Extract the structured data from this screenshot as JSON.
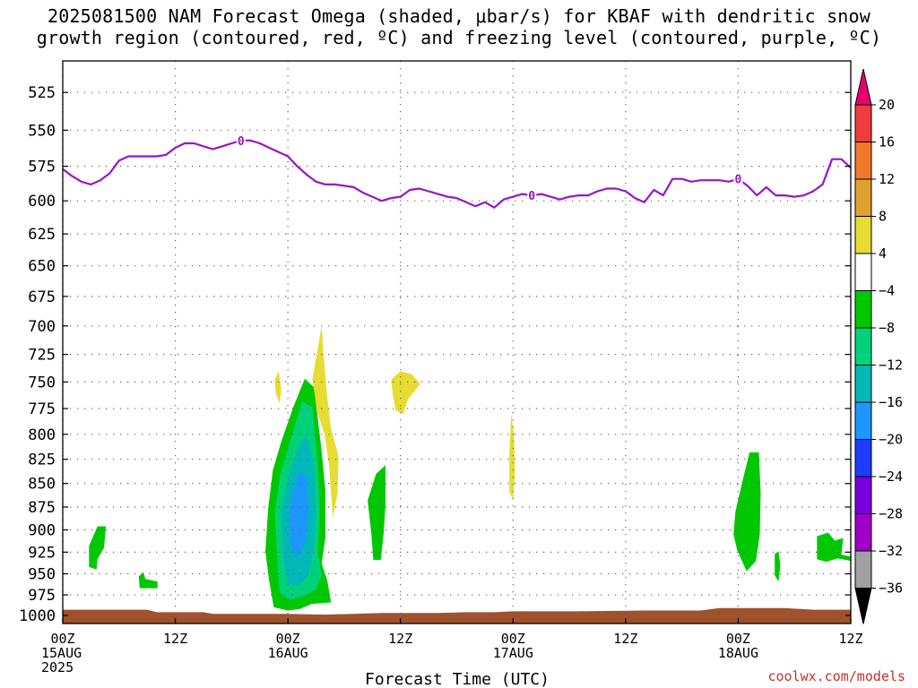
{
  "title_line1": "2025081500 NAM Forecast Omega (shaded, μbar/s) for KBAF with dendritic snow",
  "title_line2": "growth region (contoured, red, ºC) and freezing level (contoured, purple, ºC)",
  "credit": "coolwx.com/models",
  "chart_data": {
    "type": "heatmap",
    "xlabel": "Forecast Time (UTC)",
    "ylabel": "",
    "x_ticks": [
      {
        "hour": 0,
        "lines": [
          "00Z",
          "15AUG",
          "2025"
        ]
      },
      {
        "hour": 12,
        "lines": [
          "12Z"
        ]
      },
      {
        "hour": 24,
        "lines": [
          "00Z",
          "16AUG"
        ]
      },
      {
        "hour": 36,
        "lines": [
          "12Z"
        ]
      },
      {
        "hour": 48,
        "lines": [
          "00Z",
          "17AUG"
        ]
      },
      {
        "hour": 60,
        "lines": [
          "12Z"
        ]
      },
      {
        "hour": 72,
        "lines": [
          "00Z",
          "18AUG"
        ]
      },
      {
        "hour": 84,
        "lines": [
          "12Z"
        ]
      }
    ],
    "xlim": [
      0,
      84
    ],
    "y_ticks": [
      525,
      550,
      575,
      600,
      625,
      650,
      675,
      700,
      725,
      750,
      775,
      800,
      825,
      850,
      875,
      900,
      925,
      950,
      975,
      1000
    ],
    "ylim": [
      505,
      1010
    ],
    "y_scale": "log-pressure (hPa, increasing downward)",
    "grid": true,
    "colorbar": {
      "levels": [
        20,
        16,
        12,
        8,
        4,
        -4,
        -8,
        -12,
        -16,
        -20,
        -24,
        -28,
        -32,
        -36
      ],
      "colors": [
        "#e8006e",
        "#f03c3c",
        "#f07828",
        "#e0a030",
        "#e6dc32",
        "#ffffff",
        "#00c800",
        "#00d27a",
        "#00b8b8",
        "#1e96ff",
        "#1e3cff",
        "#7800dc",
        "#a000c8",
        "#a0a0a0",
        "#000000"
      ]
    },
    "freezing_level": {
      "color": "#9a14c8",
      "label": "0",
      "label_hours": [
        19,
        50,
        72
      ],
      "points": [
        [
          0,
          577
        ],
        [
          1,
          582
        ],
        [
          2,
          586
        ],
        [
          3,
          588
        ],
        [
          4,
          585
        ],
        [
          5,
          580
        ],
        [
          6,
          571
        ],
        [
          7,
          568
        ],
        [
          8,
          568
        ],
        [
          9,
          568
        ],
        [
          10,
          568
        ],
        [
          11,
          567
        ],
        [
          12,
          562
        ],
        [
          13,
          559
        ],
        [
          14,
          559
        ],
        [
          15,
          561
        ],
        [
          16,
          563
        ],
        [
          17,
          561
        ],
        [
          18,
          559
        ],
        [
          19,
          557
        ],
        [
          20,
          557
        ],
        [
          21,
          559
        ],
        [
          22,
          562
        ],
        [
          23,
          565
        ],
        [
          24,
          568
        ],
        [
          25,
          575
        ],
        [
          26,
          581
        ],
        [
          27,
          586
        ],
        [
          28,
          588
        ],
        [
          29,
          588
        ],
        [
          30,
          589
        ],
        [
          31,
          590
        ],
        [
          32,
          594
        ],
        [
          33,
          597
        ],
        [
          34,
          600
        ],
        [
          35,
          598
        ],
        [
          36,
          597
        ],
        [
          37,
          592
        ],
        [
          38,
          591
        ],
        [
          39,
          593
        ],
        [
          40,
          595
        ],
        [
          41,
          597
        ],
        [
          42,
          598
        ],
        [
          43,
          601
        ],
        [
          44,
          604
        ],
        [
          45,
          601
        ],
        [
          46,
          605
        ],
        [
          47,
          599
        ],
        [
          48,
          597
        ],
        [
          49,
          595
        ],
        [
          50,
          596
        ],
        [
          51,
          595
        ],
        [
          52,
          597
        ],
        [
          53,
          599
        ],
        [
          54,
          597
        ],
        [
          55,
          596
        ],
        [
          56,
          596
        ],
        [
          57,
          593
        ],
        [
          58,
          591
        ],
        [
          59,
          591
        ],
        [
          60,
          593
        ],
        [
          61,
          598
        ],
        [
          62,
          601
        ],
        [
          63,
          592
        ],
        [
          64,
          596
        ],
        [
          65,
          584
        ],
        [
          66,
          584
        ],
        [
          67,
          586
        ],
        [
          68,
          585
        ],
        [
          69,
          585
        ],
        [
          70,
          585
        ],
        [
          71,
          586
        ],
        [
          72,
          584
        ],
        [
          73,
          589
        ],
        [
          74,
          596
        ],
        [
          75,
          590
        ],
        [
          76,
          596
        ],
        [
          77,
          596
        ],
        [
          78,
          597
        ],
        [
          79,
          596
        ],
        [
          80,
          593
        ],
        [
          81,
          588
        ],
        [
          82,
          570
        ],
        [
          83,
          570
        ],
        [
          84,
          576
        ]
      ]
    },
    "surface_ground": {
      "color": "#a0522d",
      "points": [
        [
          0,
          993
        ],
        [
          5,
          993
        ],
        [
          9,
          993
        ],
        [
          10,
          996
        ],
        [
          15,
          996
        ],
        [
          16,
          998
        ],
        [
          24,
          998
        ],
        [
          28,
          999
        ],
        [
          34,
          997
        ],
        [
          40,
          997
        ],
        [
          43,
          996
        ],
        [
          46,
          996
        ],
        [
          48,
          995
        ],
        [
          55,
          995
        ],
        [
          62,
          994
        ],
        [
          65,
          994
        ],
        [
          68,
          994
        ],
        [
          70,
          991
        ],
        [
          77,
          991
        ],
        [
          80,
          993
        ],
        [
          84,
          993
        ]
      ]
    },
    "omega_regions": [
      {
        "band": "-8",
        "points": [
          [
            21.9,
            876
          ],
          [
            22.4,
            836
          ],
          [
            23.3,
            807
          ],
          [
            24.6,
            773
          ],
          [
            25.8,
            747
          ],
          [
            26.8,
            755
          ],
          [
            27.6,
            817
          ],
          [
            28.0,
            858
          ],
          [
            28.0,
            908
          ],
          [
            27.6,
            938
          ],
          [
            28.2,
            958
          ],
          [
            28.6,
            984
          ],
          [
            26.5,
            986
          ],
          [
            25.3,
            992
          ],
          [
            24.0,
            994
          ],
          [
            22.5,
            990
          ],
          [
            22.0,
            958
          ],
          [
            21.6,
            924
          ]
        ]
      },
      {
        "band": "-12",
        "points": [
          [
            22.6,
            880
          ],
          [
            23.2,
            840
          ],
          [
            24.3,
            805
          ],
          [
            25.5,
            768
          ],
          [
            26.6,
            774
          ],
          [
            27.2,
            830
          ],
          [
            27.4,
            880
          ],
          [
            27.2,
            925
          ],
          [
            27.6,
            952
          ],
          [
            27.0,
            968
          ],
          [
            26.0,
            975
          ],
          [
            24.2,
            981
          ],
          [
            23.1,
            972
          ],
          [
            22.9,
            940
          ]
        ]
      },
      {
        "band": "-16",
        "points": [
          [
            23.3,
            880
          ],
          [
            23.9,
            848
          ],
          [
            25.0,
            815
          ],
          [
            26.0,
            800
          ],
          [
            26.8,
            832
          ],
          [
            27.0,
            880
          ],
          [
            26.7,
            925
          ],
          [
            26.2,
            952
          ],
          [
            25.2,
            964
          ],
          [
            24.0,
            962
          ],
          [
            23.5,
            935
          ]
        ]
      },
      {
        "band": "-20",
        "points": [
          [
            24.1,
            882
          ],
          [
            24.6,
            855
          ],
          [
            25.3,
            838
          ],
          [
            26.0,
            845
          ],
          [
            26.2,
            880
          ],
          [
            25.9,
            912
          ],
          [
            25.1,
            932
          ],
          [
            24.3,
            918
          ]
        ]
      },
      {
        "band": "-8",
        "points": [
          [
            2.8,
            918
          ],
          [
            3.7,
            896
          ],
          [
            4.6,
            896
          ],
          [
            4.4,
            920
          ],
          [
            3.7,
            933
          ],
          [
            3.6,
            945
          ],
          [
            2.8,
            942
          ]
        ]
      },
      {
        "band": "-8",
        "points": [
          [
            8.1,
            953
          ],
          [
            8.6,
            948
          ],
          [
            8.8,
            956
          ],
          [
            10.1,
            959
          ],
          [
            10.1,
            967
          ],
          [
            8.2,
            967
          ]
        ]
      },
      {
        "band": "-8",
        "points": [
          [
            32.5,
            868
          ],
          [
            33.4,
            840
          ],
          [
            34.4,
            831
          ],
          [
            34.4,
            872
          ],
          [
            34.2,
            905
          ],
          [
            33.9,
            934
          ],
          [
            33.1,
            934
          ],
          [
            32.9,
            905
          ]
        ]
      },
      {
        "band": "-8",
        "points": [
          [
            71.7,
            880
          ],
          [
            72.4,
            850
          ],
          [
            73.2,
            818
          ],
          [
            74.2,
            818
          ],
          [
            74.4,
            860
          ],
          [
            74.3,
            905
          ],
          [
            73.9,
            935
          ],
          [
            72.9,
            947
          ],
          [
            71.9,
            923
          ],
          [
            71.5,
            905
          ]
        ]
      },
      {
        "band": "-8",
        "points": [
          [
            75.9,
            927
          ],
          [
            76.3,
            924
          ],
          [
            76.5,
            940
          ],
          [
            76.3,
            959
          ],
          [
            75.9,
            952
          ]
        ]
      },
      {
        "band": "-8",
        "points": [
          [
            80.4,
            907
          ],
          [
            81.6,
            903
          ],
          [
            82.3,
            912
          ],
          [
            83.2,
            909
          ],
          [
            83.0,
            928
          ],
          [
            84.0,
            930
          ],
          [
            84.0,
            935
          ],
          [
            82.6,
            932
          ],
          [
            81.4,
            936
          ],
          [
            80.4,
            933
          ]
        ]
      },
      {
        "band": "4",
        "points": [
          [
            26.6,
            748
          ],
          [
            27.6,
            700
          ],
          [
            27.8,
            725
          ],
          [
            28.2,
            765
          ],
          [
            28.6,
            795
          ],
          [
            29.0,
            808
          ],
          [
            29.4,
            822
          ],
          [
            29.3,
            860
          ],
          [
            28.8,
            887
          ],
          [
            28.6,
            860
          ],
          [
            28.4,
            832
          ],
          [
            27.9,
            800
          ],
          [
            27.2,
            780
          ]
        ]
      },
      {
        "band": "4",
        "points": [
          [
            22.6,
            748
          ],
          [
            23.0,
            740
          ],
          [
            23.3,
            757
          ],
          [
            23.1,
            770
          ],
          [
            22.7,
            760
          ]
        ]
      },
      {
        "band": "4",
        "points": [
          [
            35.0,
            748
          ],
          [
            36.0,
            740
          ],
          [
            37.2,
            743
          ],
          [
            38.1,
            752
          ],
          [
            36.8,
            766
          ],
          [
            36.3,
            780
          ],
          [
            35.5,
            777
          ],
          [
            35.2,
            763
          ]
        ]
      },
      {
        "band": "4",
        "points": [
          [
            47.6,
            820
          ],
          [
            47.8,
            780
          ],
          [
            48.1,
            800
          ],
          [
            48.2,
            840
          ],
          [
            48.0,
            868
          ],
          [
            47.6,
            858
          ]
        ]
      }
    ]
  }
}
